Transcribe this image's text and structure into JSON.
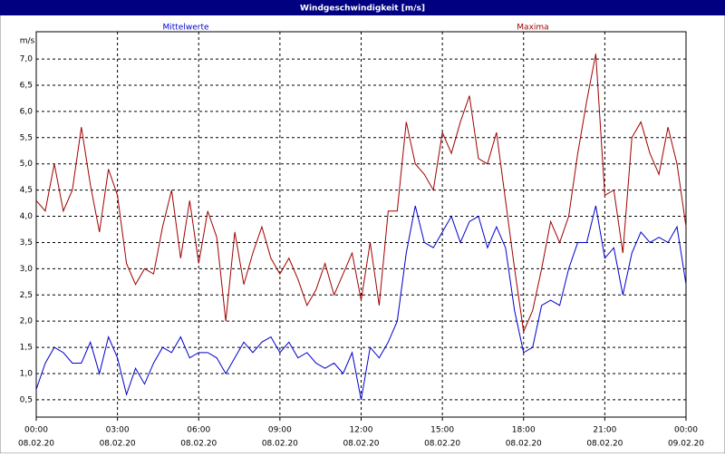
{
  "chart_data": {
    "type": "line",
    "title": "Windgeschwindigkeit [m/s]",
    "y_axis_label": "m/s",
    "x": [
      0,
      20,
      40,
      60,
      80,
      100,
      120,
      140,
      160,
      180,
      200,
      220,
      240,
      260,
      280,
      300,
      320,
      340,
      360,
      380,
      400,
      420,
      440,
      460,
      480,
      500,
      520,
      540,
      560,
      580,
      600,
      620,
      640,
      660,
      680,
      700,
      720,
      740,
      760,
      780,
      800,
      820,
      840,
      860,
      880,
      900,
      920,
      940,
      960,
      980,
      1000,
      1020,
      1040,
      1060,
      1080,
      1100,
      1120,
      1140,
      1160,
      1180,
      1200,
      1220,
      1240,
      1260,
      1280,
      1300,
      1320,
      1340,
      1360,
      1380,
      1400,
      1420,
      1440
    ],
    "series": [
      {
        "name": "Mittelwerte",
        "color": "#0000cc",
        "values": [
          0.7,
          1.2,
          1.5,
          1.4,
          1.2,
          1.2,
          1.6,
          1.0,
          1.7,
          1.3,
          0.6,
          1.1,
          0.8,
          1.2,
          1.5,
          1.4,
          1.7,
          1.3,
          1.4,
          1.4,
          1.3,
          1.0,
          1.3,
          1.6,
          1.4,
          1.6,
          1.7,
          1.4,
          1.6,
          1.3,
          1.4,
          1.2,
          1.1,
          1.2,
          1.0,
          1.4,
          0.5,
          1.5,
          1.3,
          1.6,
          2.0,
          3.3,
          4.2,
          3.5,
          3.4,
          3.7,
          4.0,
          3.5,
          3.9,
          4.0,
          3.4,
          3.8,
          3.4,
          2.2,
          1.4,
          1.5,
          2.3,
          2.4,
          2.3,
          3.0,
          3.5,
          3.5,
          4.2,
          3.2,
          3.4,
          2.5,
          3.3,
          3.7,
          3.5,
          3.6,
          3.5,
          3.8,
          2.7
        ]
      },
      {
        "name": "Maxima",
        "color": "#a00000",
        "values": [
          4.3,
          4.1,
          5.0,
          4.1,
          4.5,
          5.7,
          4.6,
          3.7,
          4.9,
          4.4,
          3.1,
          2.7,
          3.0,
          2.9,
          3.8,
          4.5,
          3.2,
          4.3,
          3.1,
          4.1,
          3.6,
          2.0,
          3.7,
          2.7,
          3.3,
          3.8,
          3.2,
          2.9,
          3.2,
          2.8,
          2.3,
          2.6,
          3.1,
          2.5,
          2.9,
          3.3,
          2.4,
          3.5,
          2.3,
          4.1,
          4.1,
          5.8,
          5.0,
          4.8,
          4.5,
          5.6,
          5.2,
          5.8,
          6.3,
          5.1,
          5.0,
          5.6,
          4.3,
          3.0,
          1.8,
          2.2,
          3.0,
          3.9,
          3.5,
          4.0,
          5.2,
          6.2,
          7.1,
          4.4,
          4.5,
          3.3,
          5.5,
          5.8,
          5.2,
          4.8,
          5.7,
          5.0,
          3.8
        ]
      }
    ],
    "xlim": [
      0,
      1440
    ],
    "xticks": [
      {
        "value": 0,
        "label": "00:00",
        "date": "08.02.20"
      },
      {
        "value": 180,
        "label": "03:00",
        "date": "08.02.20"
      },
      {
        "value": 360,
        "label": "06:00",
        "date": "08.02.20"
      },
      {
        "value": 540,
        "label": "09:00",
        "date": "08.02.20"
      },
      {
        "value": 720,
        "label": "12:00",
        "date": "08.02.20"
      },
      {
        "value": 900,
        "label": "15:00",
        "date": "08.02.20"
      },
      {
        "value": 1080,
        "label": "18:00",
        "date": "08.02.20"
      },
      {
        "value": 1260,
        "label": "21:00",
        "date": "08.02.20"
      },
      {
        "value": 1440,
        "label": "00:00",
        "date": "09.02.20"
      }
    ],
    "ylim": [
      0.17,
      7.52
    ],
    "yticks": [
      {
        "value": 0.5,
        "label": "0,5"
      },
      {
        "value": 1.0,
        "label": "1,0"
      },
      {
        "value": 1.5,
        "label": "1,5"
      },
      {
        "value": 2.0,
        "label": "2,0"
      },
      {
        "value": 2.5,
        "label": "2,5"
      },
      {
        "value": 3.0,
        "label": "3,0"
      },
      {
        "value": 3.5,
        "label": "3,5"
      },
      {
        "value": 4.0,
        "label": "4,0"
      },
      {
        "value": 4.5,
        "label": "4,5"
      },
      {
        "value": 5.0,
        "label": "5,0"
      },
      {
        "value": 5.5,
        "label": "5,5"
      },
      {
        "value": 6.0,
        "label": "6,0"
      },
      {
        "value": 6.5,
        "label": "6,5"
      },
      {
        "value": 7.0,
        "label": "7,0"
      }
    ],
    "grid": true
  }
}
